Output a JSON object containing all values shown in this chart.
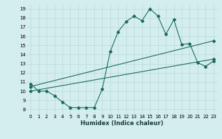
{
  "xlabel": "Humidex (Indice chaleur)",
  "bg_color": "#d4eeee",
  "grid_color": "#b8d8d8",
  "line_color": "#1a6a5a",
  "x_ticks": [
    0,
    1,
    2,
    3,
    4,
    5,
    6,
    7,
    8,
    9,
    10,
    11,
    12,
    13,
    14,
    15,
    16,
    17,
    18,
    19,
    20,
    21,
    22,
    23
  ],
  "y_ticks": [
    8,
    9,
    10,
    11,
    12,
    13,
    14,
    15,
    16,
    17,
    18,
    19
  ],
  "ylim": [
    7.5,
    19.5
  ],
  "xlim": [
    -0.5,
    23.5
  ],
  "series1_x": [
    0,
    1,
    2,
    3,
    4,
    5,
    6,
    7,
    8,
    9,
    10,
    11,
    12,
    13,
    14,
    15,
    16,
    17,
    18,
    19,
    20,
    21,
    22,
    23
  ],
  "series1_y": [
    10.8,
    10.0,
    10.0,
    9.5,
    8.8,
    8.2,
    8.2,
    8.2,
    8.2,
    10.2,
    14.3,
    16.5,
    17.6,
    18.2,
    17.7,
    19.0,
    18.2,
    16.2,
    17.8,
    15.1,
    15.2,
    13.1,
    12.7,
    13.3
  ],
  "series2_x": [
    0,
    23
  ],
  "series2_y": [
    10.5,
    15.5
  ],
  "series3_x": [
    0,
    23
  ],
  "series3_y": [
    10.0,
    13.5
  ],
  "tick_fontsize": 5,
  "xlabel_fontsize": 6
}
